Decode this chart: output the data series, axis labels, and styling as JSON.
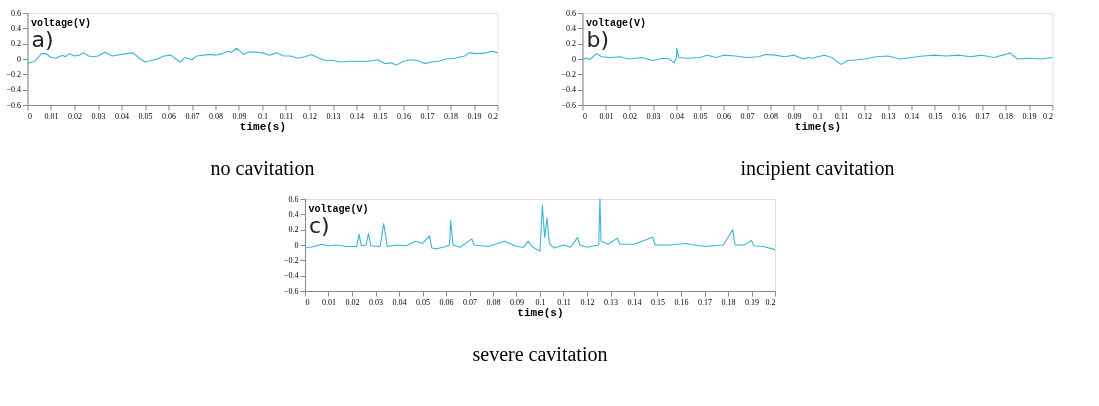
{
  "chart_data": [
    {
      "type": "line",
      "title": "no cavitation",
      "xlabel": "time(s)",
      "ylabel": "voltage(V)",
      "annotations": [
        "a)"
      ],
      "xlim": [
        0,
        0.2
      ],
      "ylim": [
        -0.6,
        0.6
      ],
      "xticks": [
        0,
        0.01,
        0.02,
        0.03,
        0.04,
        0.05,
        0.06,
        0.07,
        0.08,
        0.09,
        0.1,
        0.11,
        0.12,
        0.13,
        0.14,
        0.15,
        0.16,
        0.17,
        0.18,
        0.19,
        0.2
      ],
      "yticks": [
        -0.6,
        -0.4,
        -0.2,
        0,
        0.2,
        0.4,
        0.6
      ],
      "x": [
        0,
        0.003,
        0.006,
        0.008,
        0.01,
        0.012,
        0.015,
        0.016,
        0.018,
        0.02,
        0.022,
        0.024,
        0.026,
        0.028,
        0.03,
        0.033,
        0.036,
        0.04,
        0.042,
        0.045,
        0.048,
        0.05,
        0.053,
        0.056,
        0.058,
        0.061,
        0.063,
        0.065,
        0.067,
        0.07,
        0.072,
        0.075,
        0.078,
        0.08,
        0.083,
        0.085,
        0.087,
        0.089,
        0.092,
        0.094,
        0.097,
        0.1,
        0.103,
        0.106,
        0.109,
        0.112,
        0.115,
        0.118,
        0.121,
        0.124,
        0.127,
        0.13,
        0.133,
        0.137,
        0.14,
        0.145,
        0.149,
        0.152,
        0.155,
        0.157,
        0.16,
        0.163,
        0.166,
        0.169,
        0.172,
        0.175,
        0.178,
        0.182,
        0.186,
        0.188,
        0.191,
        0.195,
        0.198,
        0.2
      ],
      "series": [
        {
          "color": "#3bb4d8",
          "values": [
            -0.06,
            -0.03,
            0.07,
            0.07,
            0.02,
            0.01,
            0.05,
            0.03,
            0.07,
            0.04,
            0.05,
            0.08,
            0.04,
            0.03,
            0.04,
            0.09,
            0.04,
            0.06,
            0.07,
            0.08,
            0.0,
            -0.04,
            -0.02,
            0.01,
            0.04,
            0.05,
            0.0,
            -0.04,
            0.02,
            -0.01,
            0.04,
            0.05,
            0.06,
            0.05,
            0.07,
            0.1,
            0.09,
            0.14,
            0.06,
            0.09,
            0.09,
            0.08,
            0.05,
            0.08,
            0.04,
            0.04,
            0.01,
            0.03,
            0.06,
            0.01,
            -0.02,
            -0.02,
            -0.04,
            -0.03,
            -0.03,
            -0.03,
            -0.01,
            -0.06,
            -0.05,
            -0.08,
            -0.03,
            -0.01,
            -0.02,
            -0.06,
            -0.04,
            -0.03,
            0.0,
            0.01,
            0.04,
            0.08,
            0.07,
            0.08,
            0.1,
            0.08
          ]
        }
      ]
    },
    {
      "type": "line",
      "title": "incipient cavitation",
      "xlabel": "time(s)",
      "ylabel": "voltage(V)",
      "annotations": [
        "b)"
      ],
      "xlim": [
        0,
        0.2
      ],
      "ylim": [
        -0.6,
        0.6
      ],
      "xticks": [
        0,
        0.01,
        0.02,
        0.03,
        0.04,
        0.05,
        0.06,
        0.07,
        0.08,
        0.09,
        0.1,
        0.11,
        0.12,
        0.13,
        0.14,
        0.15,
        0.16,
        0.17,
        0.18,
        0.19,
        0.2
      ],
      "yticks": [
        -0.6,
        -0.4,
        -0.2,
        0,
        0.2,
        0.4,
        0.6
      ],
      "x": [
        0,
        0.002,
        0.003,
        0.006,
        0.008,
        0.012,
        0.016,
        0.02,
        0.025,
        0.03,
        0.034,
        0.037,
        0.039,
        0.04,
        0.0401,
        0.041,
        0.045,
        0.05,
        0.053,
        0.057,
        0.06,
        0.065,
        0.07,
        0.075,
        0.078,
        0.082,
        0.086,
        0.09,
        0.094,
        0.096,
        0.098,
        0.1,
        0.103,
        0.106,
        0.11,
        0.113,
        0.117,
        0.12,
        0.125,
        0.13,
        0.135,
        0.14,
        0.145,
        0.15,
        0.155,
        0.16,
        0.165,
        0.17,
        0.175,
        0.18,
        0.182,
        0.185,
        0.19,
        0.195,
        0.2
      ],
      "series": [
        {
          "color": "#3bb4d8",
          "values": [
            0.0,
            0.01,
            -0.01,
            0.07,
            0.03,
            0.02,
            0.03,
            0.0,
            0.02,
            -0.02,
            0.01,
            0.0,
            -0.05,
            0.02,
            0.14,
            0.02,
            0.01,
            0.02,
            0.05,
            0.02,
            0.05,
            0.04,
            0.02,
            0.03,
            0.06,
            0.05,
            0.03,
            0.05,
            0.0,
            0.02,
            0.01,
            0.03,
            0.05,
            0.02,
            -0.07,
            -0.02,
            -0.01,
            0.0,
            0.03,
            0.04,
            0.0,
            0.02,
            0.04,
            0.05,
            0.04,
            0.05,
            0.03,
            0.05,
            0.02,
            0.06,
            0.08,
            0.0,
            0.01,
            0.0,
            0.02
          ]
        }
      ]
    },
    {
      "type": "line",
      "title": "severe cavitation",
      "xlabel": "time(s)",
      "ylabel": "voltage(V)",
      "annotations": [
        "c)"
      ],
      "xlim": [
        0,
        0.2
      ],
      "ylim": [
        -0.6,
        0.6
      ],
      "xticks": [
        0,
        0.01,
        0.02,
        0.03,
        0.04,
        0.05,
        0.06,
        0.07,
        0.08,
        0.09,
        0.1,
        0.11,
        0.12,
        0.13,
        0.14,
        0.15,
        0.16,
        0.17,
        0.18,
        0.19,
        0.2
      ],
      "yticks": [
        -0.6,
        -0.4,
        -0.2,
        0,
        0.2,
        0.4,
        0.6
      ],
      "x": [
        0,
        0.004,
        0.007,
        0.01,
        0.013,
        0.018,
        0.022,
        0.023,
        0.024,
        0.026,
        0.027,
        0.028,
        0.032,
        0.0335,
        0.035,
        0.039,
        0.043,
        0.047,
        0.05,
        0.053,
        0.054,
        0.056,
        0.06,
        0.0615,
        0.062,
        0.063,
        0.066,
        0.071,
        0.072,
        0.078,
        0.085,
        0.09,
        0.093,
        0.095,
        0.097,
        0.1,
        0.101,
        0.102,
        0.103,
        0.104,
        0.106,
        0.11,
        0.113,
        0.116,
        0.117,
        0.12,
        0.125,
        0.1255,
        0.126,
        0.129,
        0.133,
        0.134,
        0.14,
        0.148,
        0.149,
        0.155,
        0.162,
        0.17,
        0.178,
        0.182,
        0.183,
        0.187,
        0.19,
        0.191,
        0.195,
        0.2
      ],
      "series": [
        {
          "color": "#3bb4d8",
          "values": [
            -0.04,
            -0.02,
            0.01,
            -0.01,
            0.0,
            -0.02,
            -0.02,
            0.14,
            -0.01,
            0.0,
            0.15,
            -0.01,
            -0.02,
            0.28,
            -0.02,
            0.0,
            -0.01,
            0.05,
            0.02,
            0.12,
            -0.04,
            -0.05,
            -0.02,
            0.0,
            0.32,
            0.0,
            -0.03,
            0.08,
            0.0,
            -0.02,
            0.05,
            -0.02,
            -0.03,
            0.05,
            -0.03,
            -0.08,
            0.52,
            0.1,
            0.35,
            0.02,
            -0.04,
            0.0,
            -0.03,
            0.1,
            0.0,
            -0.03,
            0.0,
            0.6,
            0.05,
            0.01,
            0.09,
            0.01,
            0.01,
            0.1,
            0.0,
            0.0,
            0.02,
            -0.02,
            0.0,
            0.2,
            0.0,
            0.0,
            0.06,
            -0.01,
            -0.02,
            -0.06
          ]
        }
      ]
    }
  ]
}
